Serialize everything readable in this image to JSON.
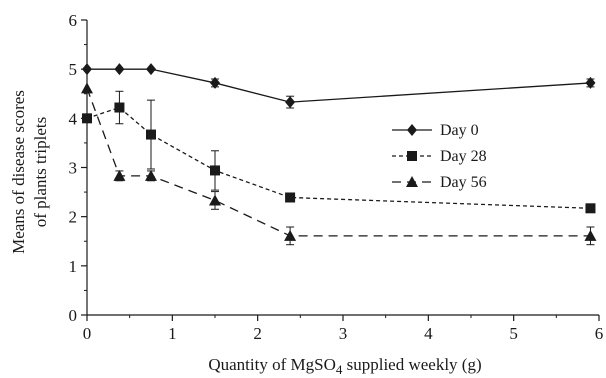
{
  "chart_data": {
    "type": "line",
    "xlabel": "Quantity of MgSO",
    "xlabel_subscript": "4",
    "xlabel_suffix": " supplied weekly (g)",
    "ylabel_line1": "Means of disease scores",
    "ylabel_line2": "of plants triplets",
    "xlim": [
      0,
      6
    ],
    "ylim": [
      0,
      6
    ],
    "xticks": [
      "0",
      "1",
      "2",
      "3",
      "4",
      "5",
      "6"
    ],
    "yticks": [
      "0",
      "1",
      "2",
      "3",
      "4",
      "5",
      "6"
    ],
    "legend_position": "center-right",
    "series": [
      {
        "name": "Day 0",
        "marker": "diamond",
        "dash": "solid",
        "x": [
          0,
          0.38,
          0.75,
          1.5,
          2.38,
          5.9
        ],
        "y": [
          5.0,
          5.0,
          5.0,
          4.72,
          4.33,
          4.72
        ],
        "err": [
          0,
          0,
          0,
          0.08,
          0.12,
          0.08
        ]
      },
      {
        "name": "Day 28",
        "marker": "square",
        "dash": "dotted",
        "x": [
          0,
          0.38,
          0.75,
          1.5,
          2.38,
          5.9
        ],
        "y": [
          4.0,
          4.22,
          3.67,
          2.94,
          2.39,
          2.17
        ],
        "err": [
          0,
          0.33,
          0.7,
          0.4,
          0,
          0
        ]
      },
      {
        "name": "Day 56",
        "marker": "triangle",
        "dash": "dashed",
        "x": [
          0,
          0.38,
          0.75,
          1.5,
          2.38,
          5.9
        ],
        "y": [
          4.61,
          2.83,
          2.83,
          2.33,
          1.61,
          1.61
        ],
        "err": [
          0,
          0.1,
          0.1,
          0.18,
          0.18,
          0.18
        ]
      }
    ]
  }
}
